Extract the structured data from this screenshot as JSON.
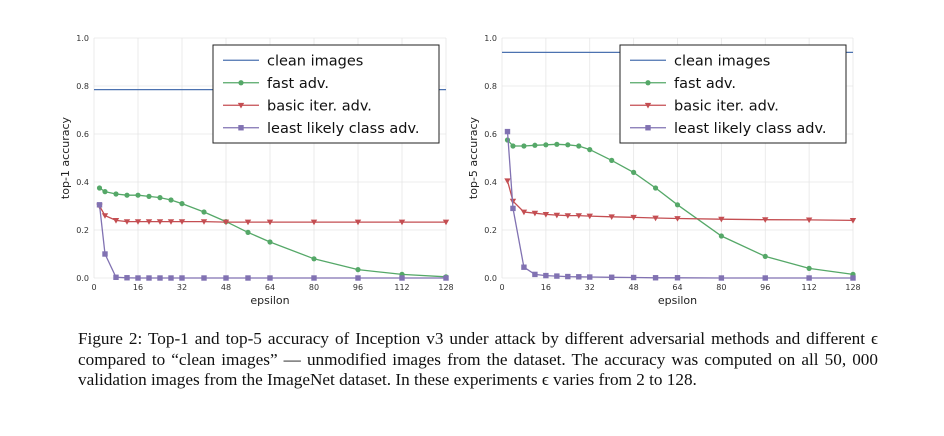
{
  "chart_data": [
    {
      "type": "line",
      "xlabel": "epsilon",
      "ylabel": "top-1 accuracy",
      "xlim": [
        0,
        128
      ],
      "ylim": [
        0.0,
        1.0
      ],
      "xticks": [
        0,
        16,
        32,
        48,
        64,
        80,
        96,
        112,
        128
      ],
      "yticks": [
        0.0,
        0.2,
        0.4,
        0.6,
        0.8,
        1.0
      ],
      "grid": true,
      "legend": "top-right",
      "series": [
        {
          "name": "clean images",
          "marker": "none",
          "color": "#4c72b0",
          "x": [
            0,
            128
          ],
          "y": [
            0.785,
            0.785
          ]
        },
        {
          "name": "fast adv.",
          "marker": "circle",
          "color": "#55a868",
          "x": [
            2,
            4,
            8,
            12,
            16,
            20,
            24,
            28,
            32,
            40,
            48,
            56,
            64,
            80,
            96,
            112,
            128
          ],
          "y": [
            0.375,
            0.36,
            0.35,
            0.345,
            0.345,
            0.34,
            0.335,
            0.325,
            0.31,
            0.275,
            0.235,
            0.19,
            0.15,
            0.08,
            0.035,
            0.015,
            0.005
          ]
        },
        {
          "name": "basic iter. adv.",
          "marker": "triangle-down",
          "color": "#c44e52",
          "x": [
            2,
            4,
            8,
            12,
            16,
            20,
            24,
            28,
            32,
            40,
            48,
            56,
            64,
            80,
            96,
            112,
            128
          ],
          "y": [
            0.3,
            0.26,
            0.24,
            0.235,
            0.235,
            0.235,
            0.235,
            0.235,
            0.235,
            0.235,
            0.233,
            0.233,
            0.233,
            0.233,
            0.233,
            0.233,
            0.233
          ]
        },
        {
          "name": "least likely class adv.",
          "marker": "square",
          "color": "#8172b2",
          "x": [
            2,
            4,
            8,
            12,
            16,
            20,
            24,
            28,
            32,
            40,
            48,
            56,
            64,
            80,
            96,
            112,
            128
          ],
          "y": [
            0.305,
            0.1,
            0.003,
            0.001,
            0.0,
            0.0,
            0.0,
            0.0,
            0.0,
            0.0,
            0.0,
            0.0,
            0.0,
            0.0,
            0.0,
            0.0,
            0.0
          ]
        }
      ]
    },
    {
      "type": "line",
      "xlabel": "epsilon",
      "ylabel": "top-5 accuracy",
      "xlim": [
        0,
        128
      ],
      "ylim": [
        0.0,
        1.0
      ],
      "xticks": [
        0,
        16,
        32,
        48,
        64,
        80,
        96,
        112,
        128
      ],
      "yticks": [
        0.0,
        0.2,
        0.4,
        0.6,
        0.8,
        1.0
      ],
      "grid": true,
      "legend": "top-right",
      "series": [
        {
          "name": "clean images",
          "marker": "none",
          "color": "#4c72b0",
          "x": [
            0,
            128
          ],
          "y": [
            0.94,
            0.94
          ]
        },
        {
          "name": "fast adv.",
          "marker": "circle",
          "color": "#55a868",
          "x": [
            2,
            4,
            8,
            12,
            16,
            20,
            24,
            28,
            32,
            40,
            48,
            56,
            64,
            80,
            96,
            112,
            128
          ],
          "y": [
            0.575,
            0.55,
            0.55,
            0.553,
            0.555,
            0.557,
            0.555,
            0.55,
            0.535,
            0.49,
            0.44,
            0.375,
            0.305,
            0.175,
            0.09,
            0.04,
            0.015
          ]
        },
        {
          "name": "basic iter. adv.",
          "marker": "triangle-down",
          "color": "#c44e52",
          "x": [
            2,
            4,
            8,
            12,
            16,
            20,
            24,
            28,
            32,
            40,
            48,
            56,
            64,
            80,
            96,
            112,
            128
          ],
          "y": [
            0.405,
            0.32,
            0.275,
            0.27,
            0.265,
            0.262,
            0.26,
            0.26,
            0.258,
            0.255,
            0.253,
            0.25,
            0.248,
            0.245,
            0.243,
            0.242,
            0.24
          ]
        },
        {
          "name": "least likely class adv.",
          "marker": "square",
          "color": "#8172b2",
          "x": [
            2,
            4,
            8,
            12,
            16,
            20,
            24,
            28,
            32,
            40,
            48,
            56,
            64,
            80,
            96,
            112,
            128
          ],
          "y": [
            0.61,
            0.29,
            0.045,
            0.015,
            0.01,
            0.008,
            0.006,
            0.005,
            0.004,
            0.003,
            0.002,
            0.001,
            0.001,
            0.0,
            0.0,
            0.0,
            0.0
          ]
        }
      ]
    }
  ],
  "caption": "Figure 2: Top-1 and top-5 accuracy of Inception v3 under attack by different adversarial methods and different ϵ compared to “clean images” — unmodified images from the dataset. The accuracy was computed on all 50, 000 validation images from the ImageNet dataset. In these experiments ϵ varies from 2 to 128."
}
